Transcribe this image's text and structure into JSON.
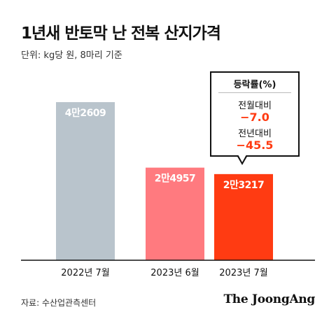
{
  "title": "1년새 반토막 난 전복 산지가격",
  "subtitle": "단위: kg당 원, 8마리 기준",
  "callout": {
    "title": "등락률(%)",
    "rows": [
      {
        "label": "전월대비",
        "value": "−7.0"
      },
      {
        "label": "전년대비",
        "value": "−45.5"
      }
    ]
  },
  "source": "자료: 수산업관측센터",
  "logo": "The JoongAng",
  "colors": {
    "gray": "#b9c4cc",
    "pink": "#ff7a7f",
    "red": "#ff3b12"
  },
  "chart_data": {
    "type": "bar",
    "categories": [
      "2022년 7월",
      "2023년 6월",
      "2023년 7월"
    ],
    "values": [
      42609,
      24957,
      23217
    ],
    "data_labels": [
      "4만2609",
      "2만4957",
      "2만3217"
    ],
    "bar_colors": [
      "#b9c4cc",
      "#ff7a7f",
      "#ff3b12"
    ],
    "title": "1년새 반토막 난 전복 산지가격",
    "ylim": [
      0,
      60000
    ],
    "grid": false
  }
}
